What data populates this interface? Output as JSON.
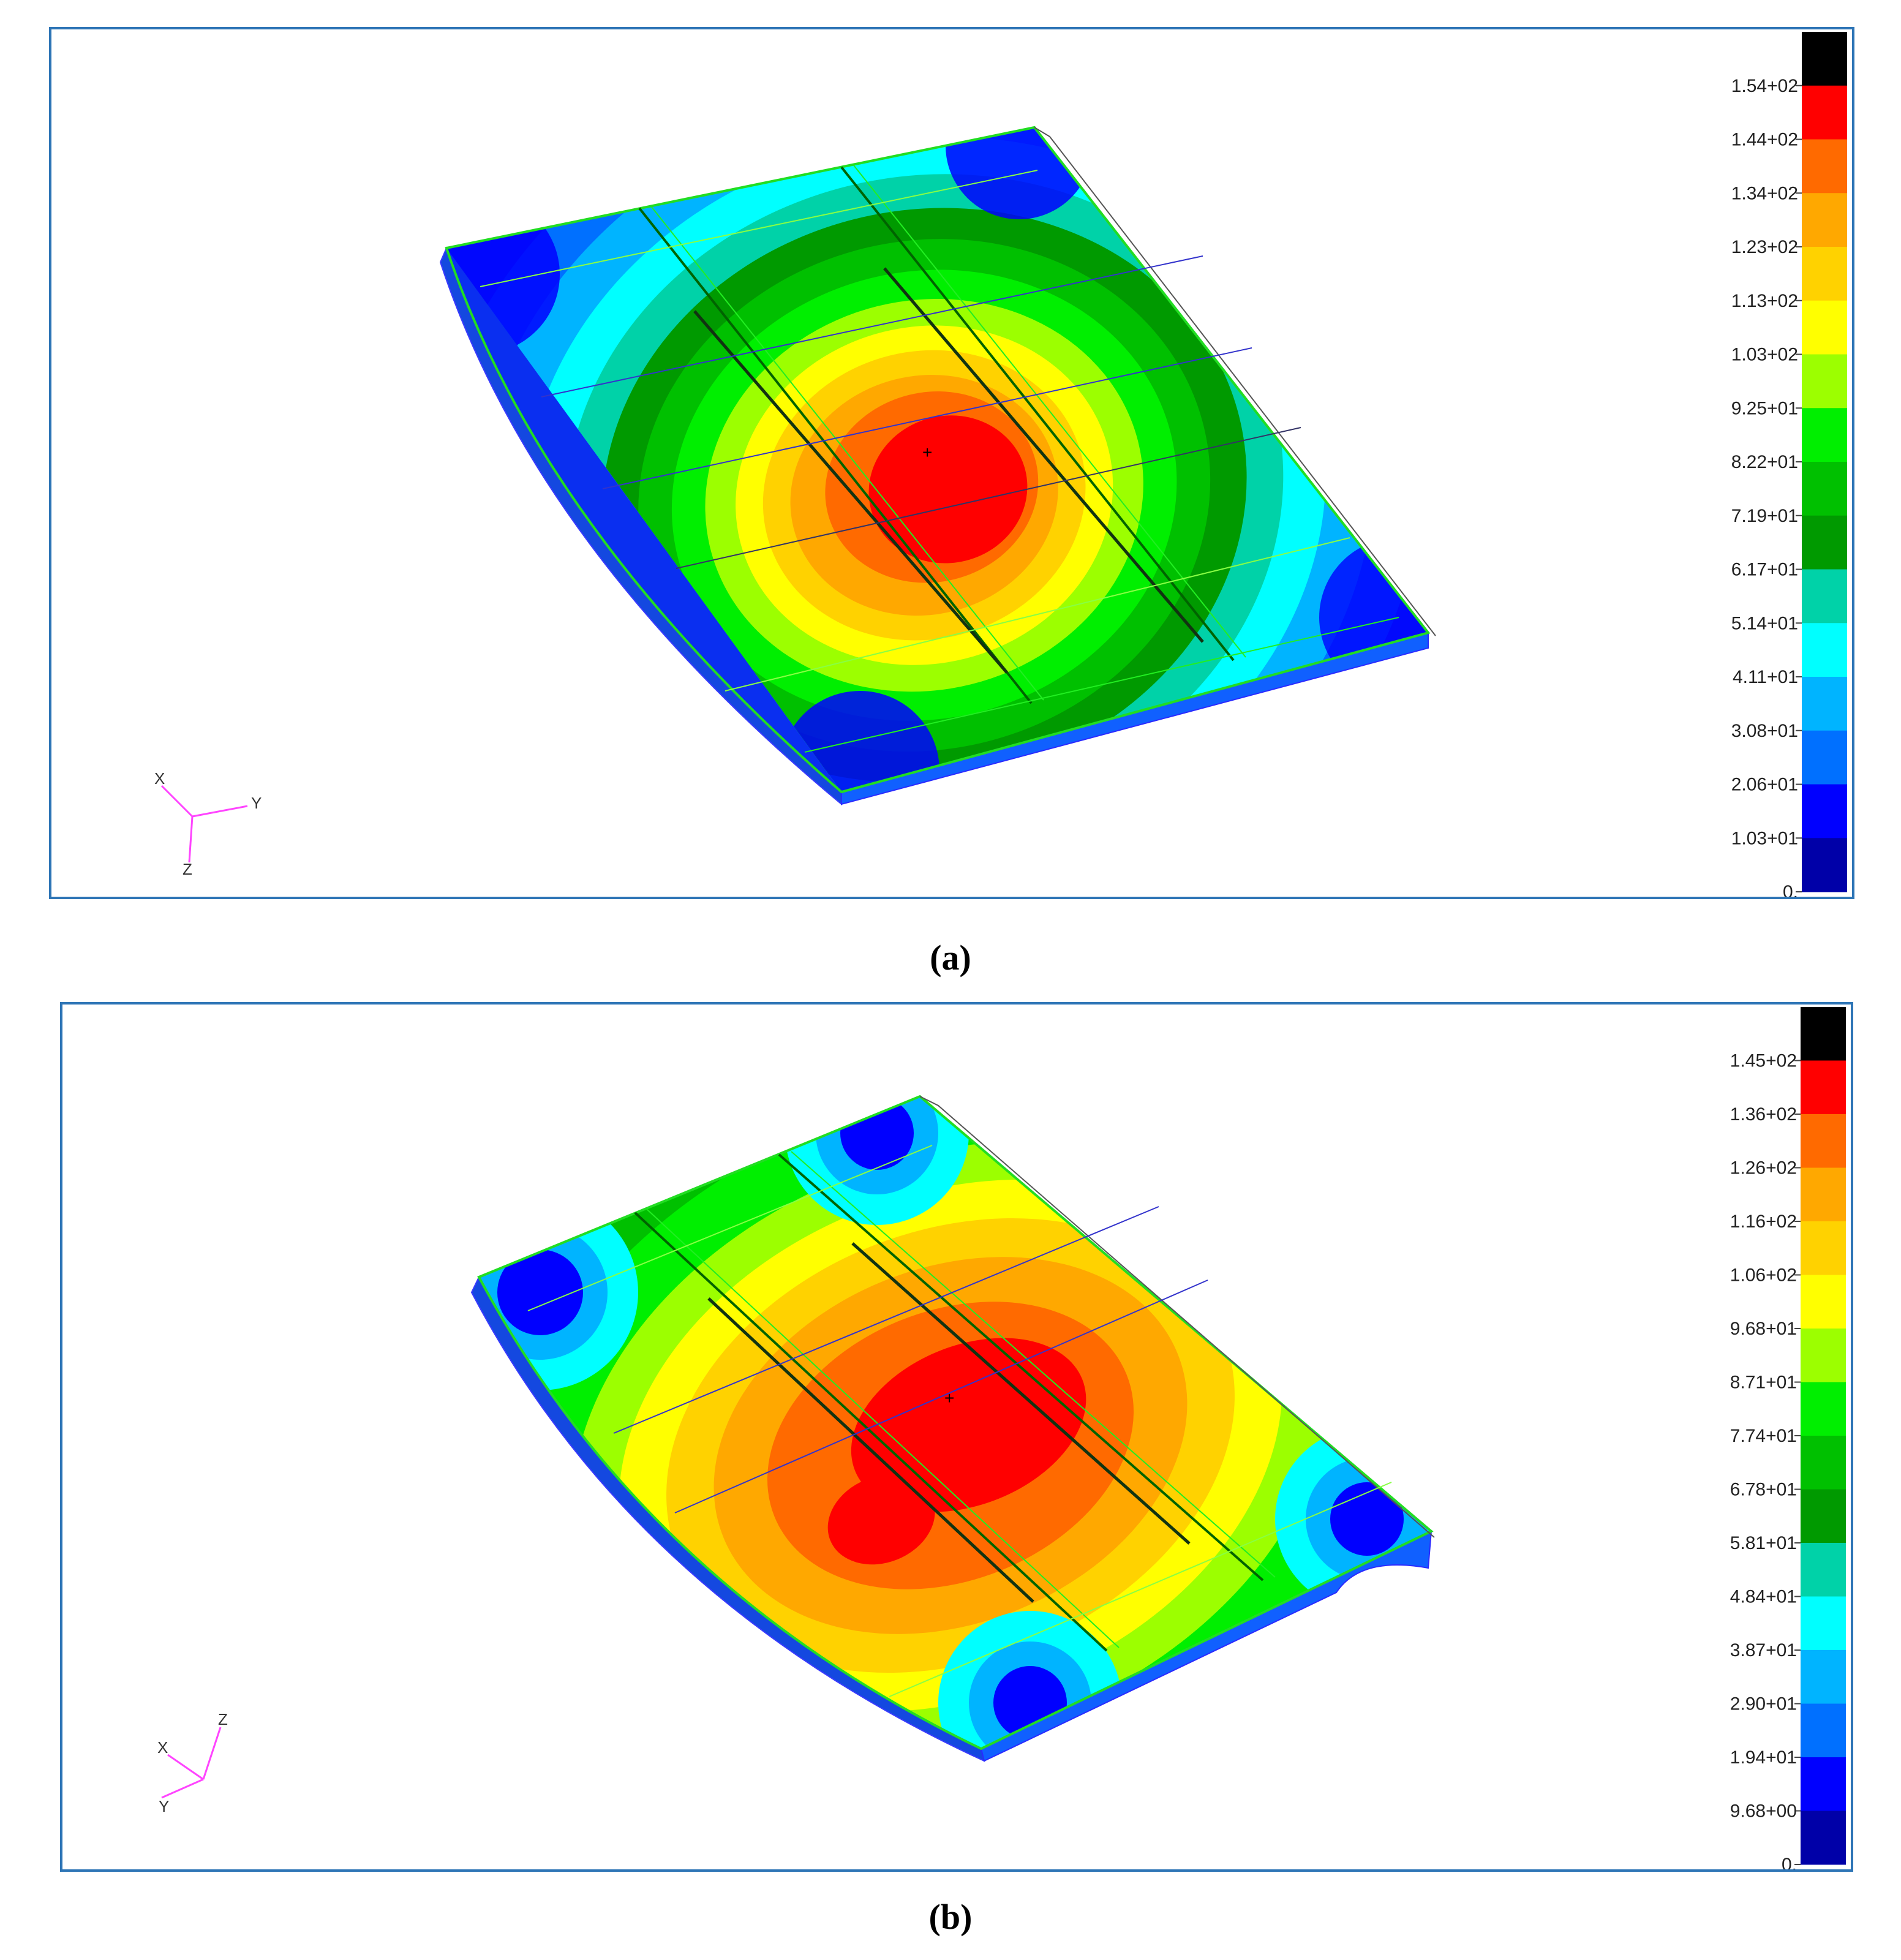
{
  "panels": [
    {
      "id": "a",
      "caption": "(a)",
      "legend_ticks": [
        "1.54+02",
        "1.44+02",
        "1.34+02",
        "1.23+02",
        "1.13+02",
        "1.03+02",
        "9.25+01",
        "8.22+01",
        "7.19+01",
        "6.17+01",
        "5.14+01",
        "4.11+01",
        "3.08+01",
        "2.06+01",
        "1.03+01",
        "0."
      ],
      "triad": {
        "x": "X",
        "y": "Y",
        "z": "Z"
      }
    },
    {
      "id": "b",
      "caption": "(b)",
      "legend_ticks": [
        "1.45+02",
        "1.36+02",
        "1.26+02",
        "1.16+02",
        "1.06+02",
        "9.68+01",
        "8.71+01",
        "7.74+01",
        "6.78+01",
        "5.81+01",
        "4.84+01",
        "3.87+01",
        "2.90+01",
        "1.94+01",
        "9.68+00",
        "0."
      ],
      "triad": {
        "x": "X",
        "y": "Y",
        "z": "Z"
      }
    }
  ],
  "legend_colors": [
    "#000000",
    "#ff0000",
    "#ff6a00",
    "#ffa800",
    "#ffd200",
    "#ffff00",
    "#9cff00",
    "#00ef00",
    "#00c000",
    "#009a00",
    "#00d2a8",
    "#00ffff",
    "#00b4ff",
    "#0070ff",
    "#0000ff",
    "#0000a8"
  ]
}
